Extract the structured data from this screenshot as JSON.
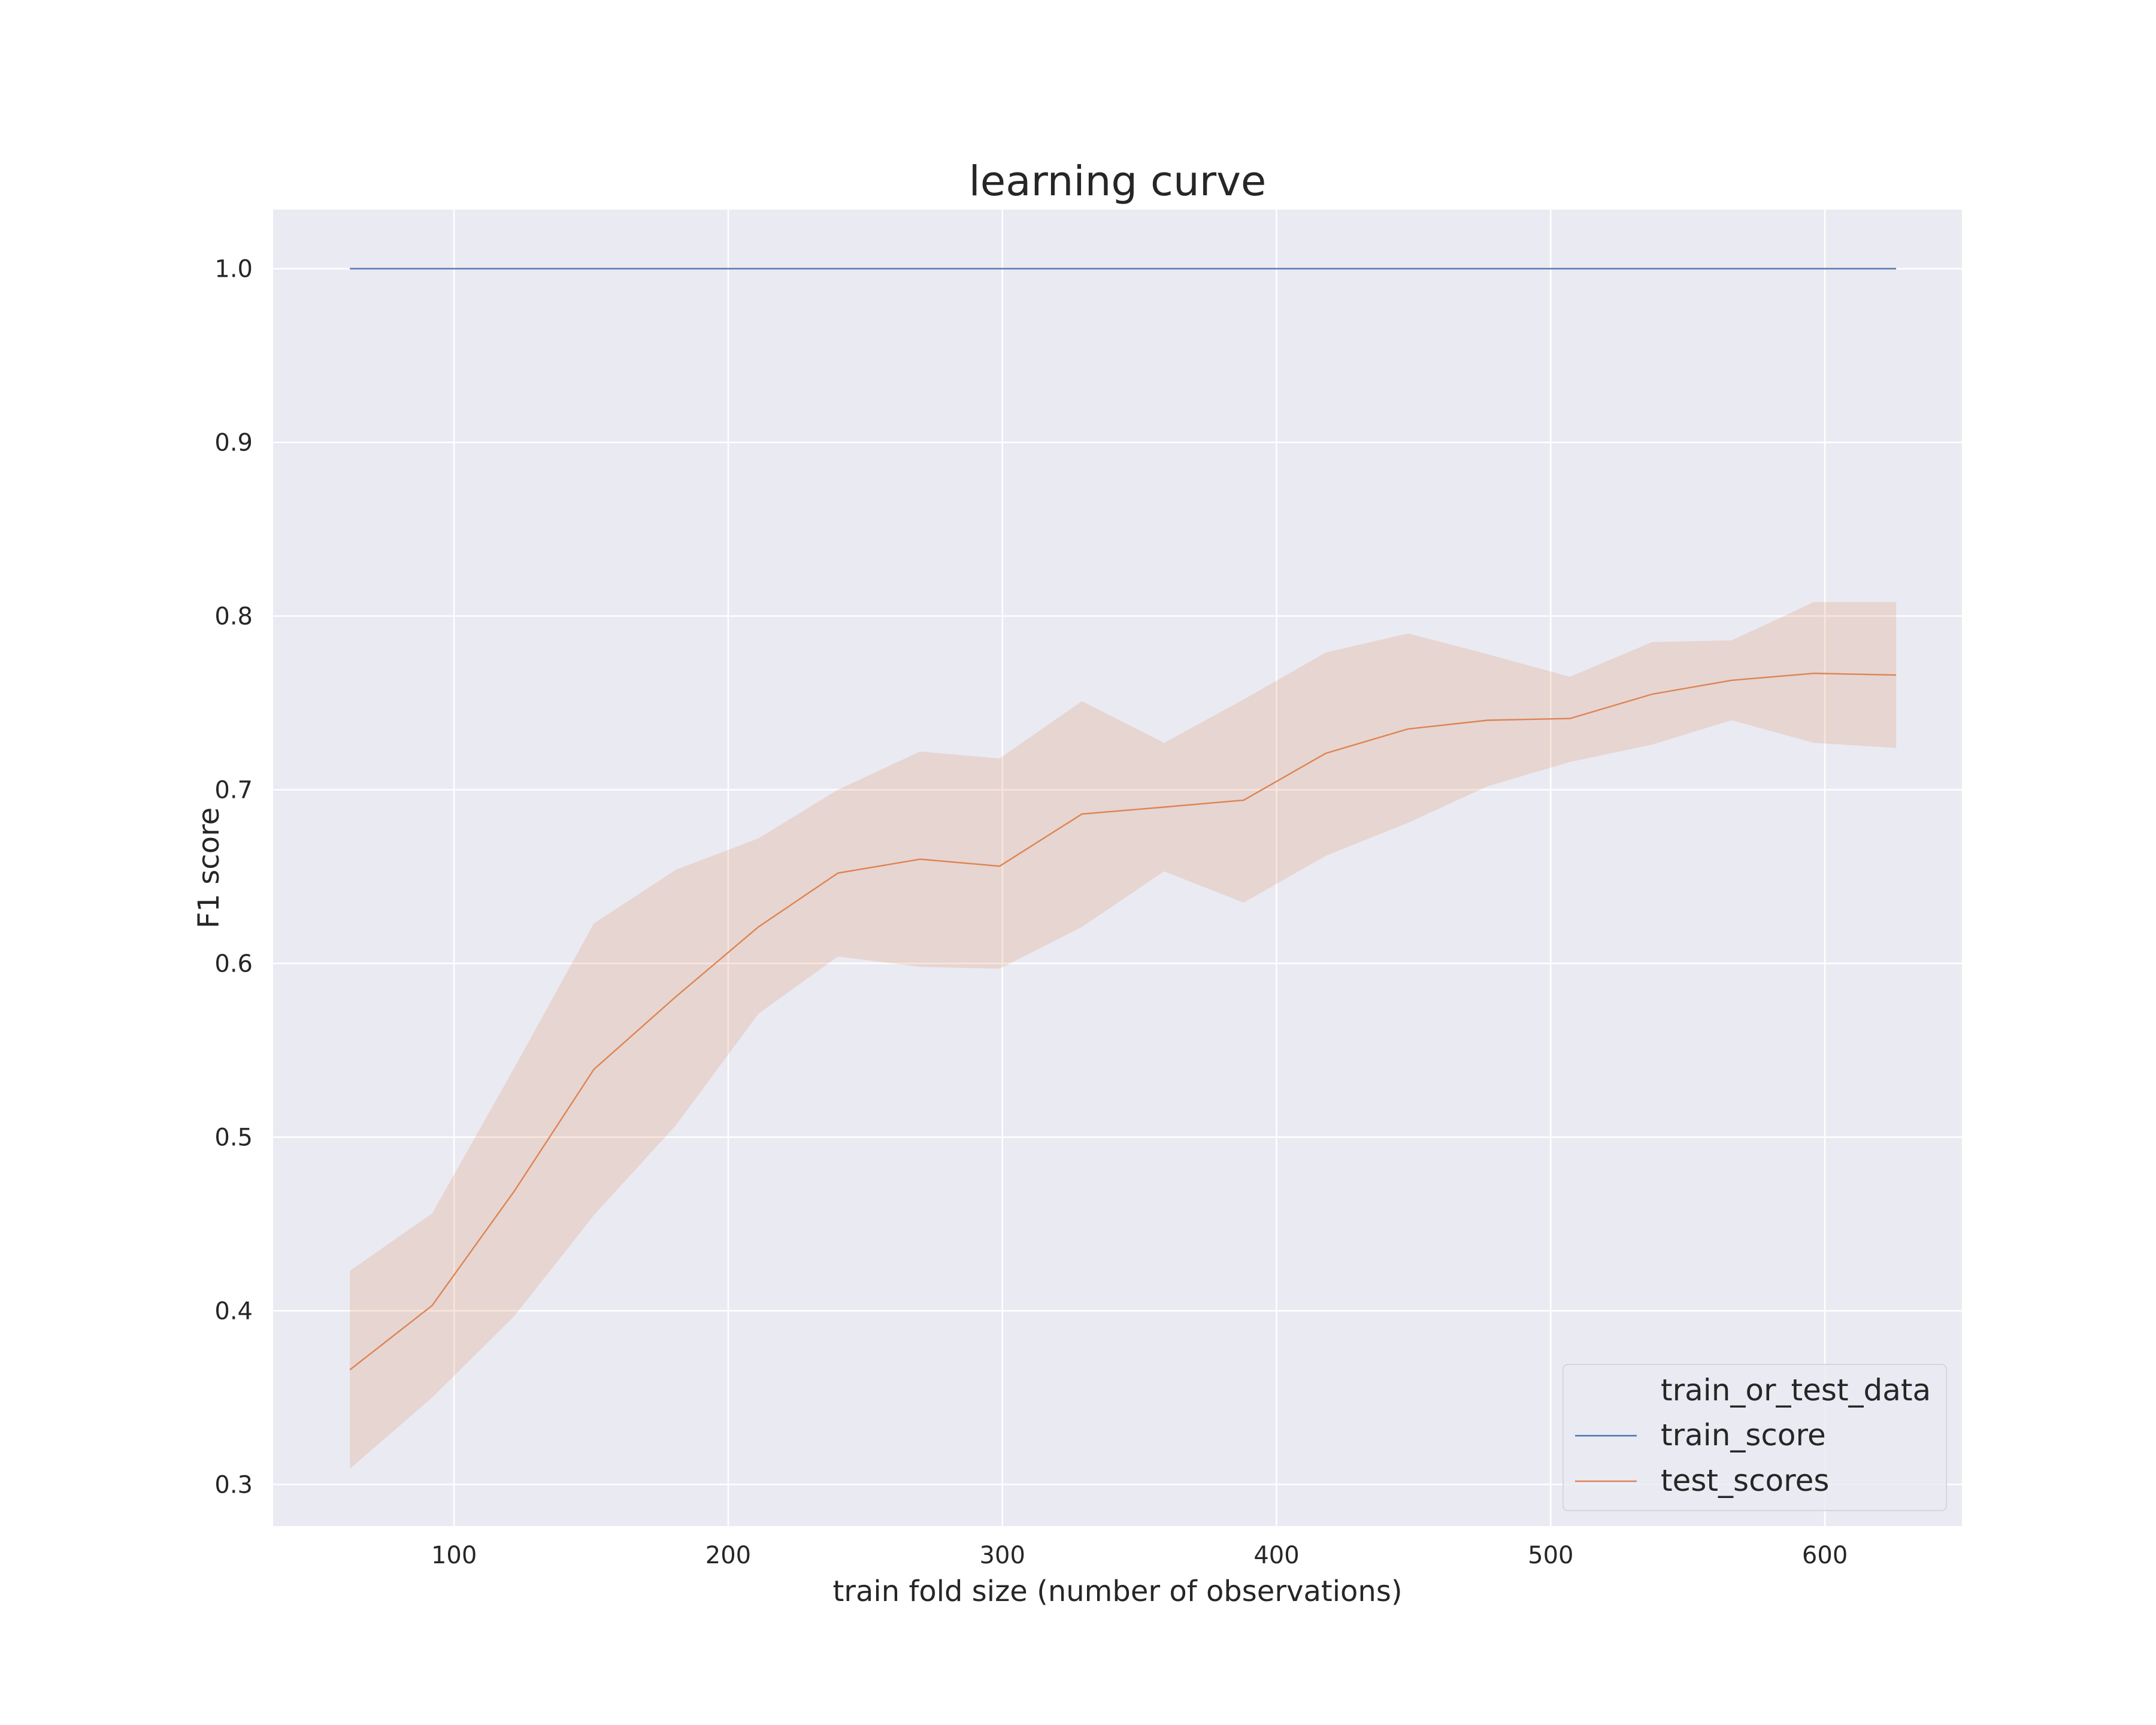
{
  "chart_data": {
    "type": "line",
    "title": "learning curve",
    "xlabel": "train fold size (number of observations)",
    "ylabel": "F1 score",
    "xlim": [
      34,
      650
    ],
    "ylim": [
      0.276,
      1.034
    ],
    "xticks": [
      100,
      200,
      300,
      400,
      500,
      600
    ],
    "yticks": [
      0.3,
      0.4,
      0.5,
      0.6,
      0.7,
      0.8,
      0.9,
      1.0
    ],
    "xtick_labels": [
      "100",
      "200",
      "300",
      "400",
      "500",
      "600"
    ],
    "ytick_labels": [
      "0.3",
      "0.4",
      "0.5",
      "0.6",
      "0.7",
      "0.8",
      "0.9",
      "1.0"
    ],
    "grid": true,
    "legend_position": "lower-right",
    "legend_title": "train_or_test_data",
    "x": [
      62,
      92,
      122,
      151,
      181,
      211,
      240,
      270,
      299,
      329,
      359,
      388,
      418,
      448,
      477,
      507,
      537,
      566,
      596,
      626
    ],
    "series": [
      {
        "name": "train_score",
        "color": "#4c72b0",
        "values": [
          1.0,
          1.0,
          1.0,
          1.0,
          1.0,
          1.0,
          1.0,
          1.0,
          1.0,
          1.0,
          1.0,
          1.0,
          1.0,
          1.0,
          1.0,
          1.0,
          1.0,
          1.0,
          1.0,
          1.0
        ]
      },
      {
        "name": "test_scores",
        "color": "#dd8452",
        "values": [
          0.366,
          0.403,
          0.469,
          0.539,
          0.581,
          0.621,
          0.652,
          0.66,
          0.656,
          0.686,
          0.69,
          0.694,
          0.721,
          0.735,
          0.74,
          0.741,
          0.755,
          0.763,
          0.767,
          0.766
        ],
        "lower": [
          0.309,
          0.35,
          0.397,
          0.455,
          0.507,
          0.571,
          0.604,
          0.598,
          0.597,
          0.621,
          0.653,
          0.635,
          0.662,
          0.681,
          0.702,
          0.716,
          0.726,
          0.74,
          0.727,
          0.724
        ],
        "upper": [
          0.423,
          0.456,
          0.54,
          0.623,
          0.654,
          0.672,
          0.7,
          0.722,
          0.718,
          0.751,
          0.727,
          0.752,
          0.779,
          0.79,
          0.778,
          0.765,
          0.785,
          0.786,
          0.808,
          0.808
        ]
      }
    ]
  },
  "colors": {
    "plot_background": "#eaeaf2",
    "grid": "#ffffff",
    "text": "#262626",
    "band_fill": "#dd8452"
  }
}
